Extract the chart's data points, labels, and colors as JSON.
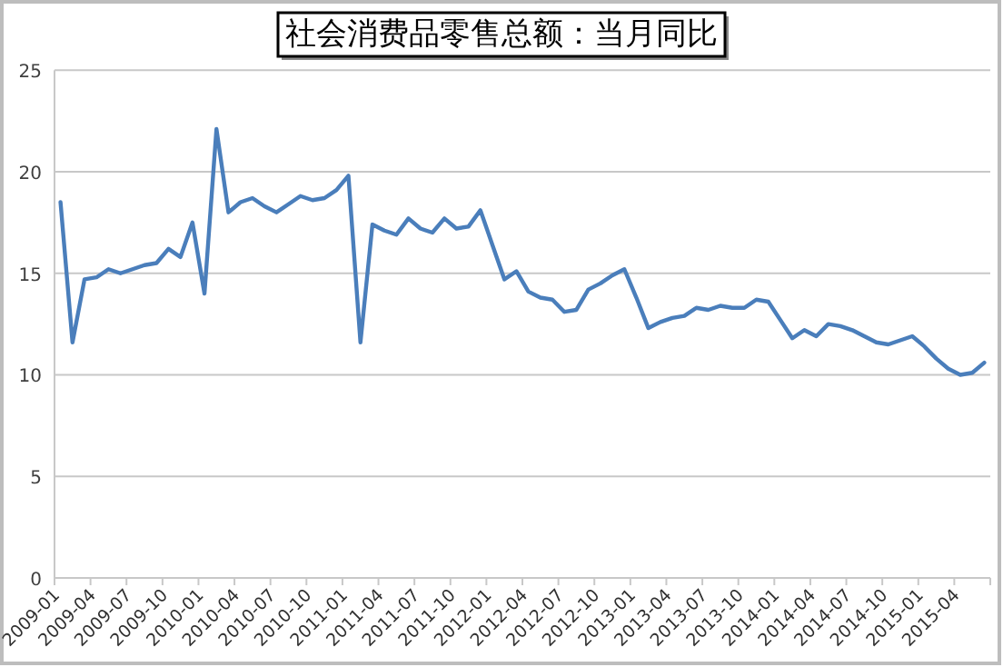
{
  "chart_data": {
    "type": "line",
    "title": "社会消费品零售总额：当月同比",
    "categories": [
      "2009-01",
      null,
      null,
      "2009-04",
      null,
      null,
      "2009-07",
      null,
      null,
      "2009-10",
      null,
      null,
      "2010-01",
      null,
      null,
      "2010-04",
      null,
      null,
      "2010-07",
      null,
      null,
      "2010-10",
      null,
      null,
      "2011-01",
      null,
      null,
      "2011-04",
      null,
      null,
      "2011-07",
      null,
      null,
      "2011-10",
      null,
      null,
      "2012-01",
      null,
      null,
      "2012-04",
      null,
      null,
      "2012-07",
      null,
      null,
      "2012-10",
      null,
      null,
      "2013-01",
      null,
      null,
      "2013-04",
      null,
      null,
      "2013-07",
      null,
      null,
      "2013-10",
      null,
      null,
      "2014-01",
      null,
      null,
      "2014-04",
      null,
      null,
      "2014-07",
      null,
      null,
      "2014-10",
      null,
      null,
      "2015-01",
      null,
      null,
      "2015-04",
      null,
      null
    ],
    "values": [
      18.5,
      11.6,
      14.7,
      14.8,
      15.2,
      15.0,
      15.2,
      15.4,
      15.5,
      16.2,
      15.8,
      17.5,
      14.0,
      22.1,
      18.0,
      18.5,
      18.7,
      18.3,
      18.0,
      18.4,
      18.8,
      18.6,
      18.7,
      19.1,
      19.8,
      11.6,
      17.4,
      17.1,
      16.9,
      17.7,
      17.2,
      17.0,
      17.7,
      17.2,
      17.3,
      18.1,
      16.4,
      14.7,
      15.1,
      14.1,
      13.8,
      13.7,
      13.1,
      13.2,
      14.2,
      14.5,
      14.9,
      15.2,
      13.8,
      12.3,
      12.6,
      12.8,
      12.9,
      13.3,
      13.2,
      13.4,
      13.3,
      13.3,
      13.7,
      13.6,
      12.7,
      11.8,
      12.2,
      11.9,
      12.5,
      12.4,
      12.2,
      11.9,
      11.6,
      11.5,
      11.7,
      11.9,
      11.4,
      10.8,
      10.3,
      10.0,
      10.1,
      10.6
    ],
    "color": "#4a7ebb",
    "ylim": [
      0,
      25
    ],
    "yticks": [
      0,
      5,
      10,
      15,
      20,
      25
    ],
    "grid": "y"
  }
}
